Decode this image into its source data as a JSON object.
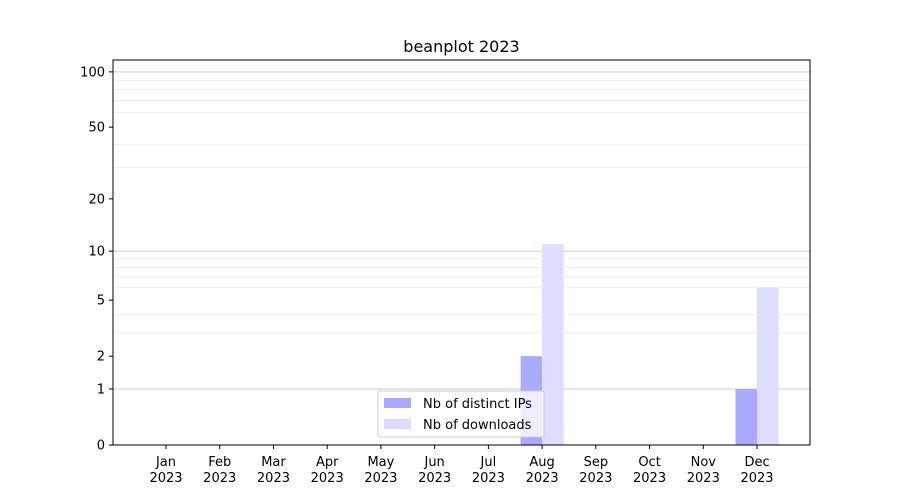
{
  "chart_data": {
    "type": "bar",
    "title": "beanplot 2023",
    "xlabel": "",
    "ylabel": "",
    "y_scale": "log(1+y)",
    "ylim": [
      0,
      116
    ],
    "y_ticks": [
      0,
      1,
      2,
      5,
      10,
      20,
      50,
      100
    ],
    "y_tick_labels": [
      "0",
      "1",
      "2",
      "5",
      "10",
      "20",
      "50",
      "100"
    ],
    "y_minor_grid": [
      3,
      4,
      6,
      7,
      8,
      9,
      30,
      40,
      60,
      70,
      80,
      90
    ],
    "grid": true,
    "categories": [
      "Jan\n2023",
      "Feb\n2023",
      "Mar\n2023",
      "Apr\n2023",
      "May\n2023",
      "Jun\n2023",
      "Jul\n2023",
      "Aug\n2023",
      "Sep\n2023",
      "Oct\n2023",
      "Nov\n2023",
      "Dec\n2023"
    ],
    "series": [
      {
        "name": "Nb of distinct IPs",
        "color": "#aaaaff",
        "values": [
          0,
          0,
          0,
          0,
          0,
          0,
          0,
          2,
          0,
          0,
          0,
          1
        ]
      },
      {
        "name": "Nb of downloads",
        "color": "#ddddff",
        "values": [
          0,
          0,
          0,
          0,
          0,
          0,
          0,
          11,
          0,
          0,
          0,
          6
        ]
      }
    ],
    "legend_placement": "lower-center"
  }
}
